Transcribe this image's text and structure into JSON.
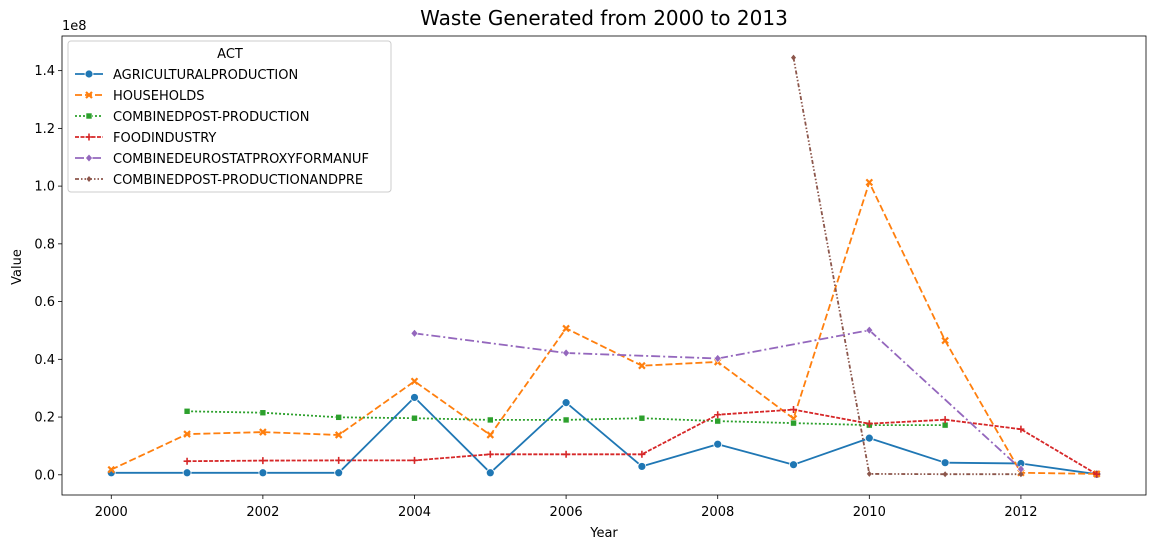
{
  "chart_data": {
    "type": "line",
    "title": "Waste Generated from 2000 to 2013",
    "xlabel": "Year",
    "ylabel": "Value",
    "y_offset_text": "1e8",
    "xlim": [
      1999.35,
      2013.65
    ],
    "ylim": [
      -7000000,
      152000000
    ],
    "x_ticks": [
      2000,
      2002,
      2004,
      2006,
      2008,
      2010,
      2012
    ],
    "x_tick_labels": [
      "2000",
      "2002",
      "2004",
      "2006",
      "2008",
      "2010",
      "2012"
    ],
    "y_ticks": [
      0,
      20000000,
      40000000,
      60000000,
      80000000,
      100000000,
      120000000,
      140000000
    ],
    "y_tick_labels": [
      "0.0",
      "0.2",
      "0.4",
      "0.6",
      "0.8",
      "1.0",
      "1.2",
      "1.4"
    ],
    "grid": false,
    "legend": {
      "title": "ACT",
      "placement": "top-left"
    },
    "series": [
      {
        "name": "AGRICULTURALPRODUCTION",
        "color": "#1f77b4",
        "dash": "solid",
        "marker": "circle",
        "x": [
          2000,
          2001,
          2002,
          2003,
          2004,
          2005,
          2006,
          2007,
          2008,
          2009,
          2010,
          2011,
          2012,
          2013
        ],
        "y": [
          700000,
          700000,
          700000,
          700000,
          26800000,
          700000,
          25000000,
          2900000,
          10600000,
          3500000,
          12700000,
          4200000,
          3900000,
          200000
        ]
      },
      {
        "name": "HOUSEHOLDS",
        "color": "#ff7f0e",
        "dash": "dashed",
        "marker": "x",
        "x": [
          2000,
          2001,
          2002,
          2003,
          2004,
          2005,
          2006,
          2007,
          2008,
          2009,
          2010,
          2011,
          2012,
          2013
        ],
        "y": [
          1800000,
          14100000,
          14800000,
          13800000,
          32400000,
          13800000,
          50700000,
          37800000,
          39100000,
          19500000,
          101300000,
          46500000,
          700000,
          300000
        ]
      },
      {
        "name": "COMBINEDPOST-PRODUCTION",
        "color": "#2ca02c",
        "dash": "dotted",
        "marker": "square",
        "x": [
          2001,
          2002,
          2003,
          2004,
          2005,
          2006,
          2007,
          2008,
          2009,
          2010,
          2011
        ],
        "y": [
          22000000,
          21500000,
          19900000,
          19600000,
          19000000,
          19000000,
          19600000,
          18600000,
          17900000,
          17200000,
          17200000
        ]
      },
      {
        "name": "FOODINDUSTRY",
        "color": "#d62728",
        "dash": "densedash",
        "marker": "plus",
        "x": [
          2001,
          2002,
          2003,
          2004,
          2005,
          2006,
          2007,
          2008,
          2009,
          2010,
          2011,
          2012,
          2013
        ],
        "y": [
          4700000,
          4900000,
          5000000,
          5000000,
          7100000,
          7100000,
          7100000,
          20800000,
          22600000,
          17700000,
          19100000,
          15800000,
          200000
        ]
      },
      {
        "name": "COMBINEDEUROSTATPROXYFORMANUF",
        "color": "#9467bd",
        "dash": "dashdot",
        "marker": "diamond",
        "x": [
          2004,
          2006,
          2008,
          2010,
          2012
        ],
        "y": [
          49000000,
          42200000,
          40300000,
          50100000,
          2000000
        ]
      },
      {
        "name": "COMBINEDPOST-PRODUCTIONANDPRE",
        "color": "#8c564b",
        "dash": "dashdotdot",
        "marker": "smalldiamond",
        "x": [
          2009,
          2010,
          2011,
          2012
        ],
        "y": [
          144500000,
          300000,
          200000,
          200000
        ]
      }
    ]
  }
}
